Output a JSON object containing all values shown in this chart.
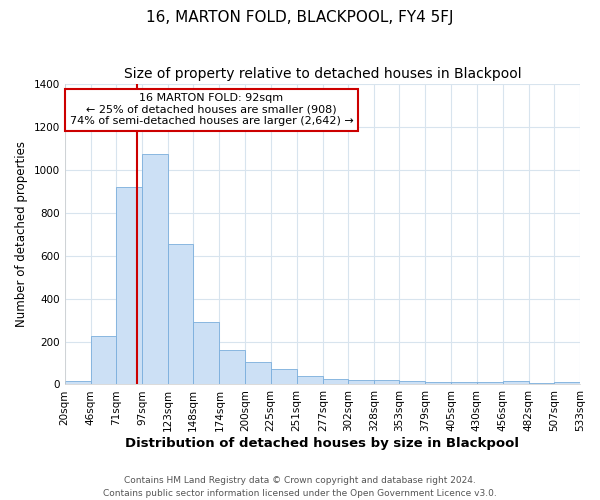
{
  "title": "16, MARTON FOLD, BLACKPOOL, FY4 5FJ",
  "subtitle": "Size of property relative to detached houses in Blackpool",
  "xlabel": "Distribution of detached houses by size in Blackpool",
  "ylabel": "Number of detached properties",
  "bin_edges": [
    20,
    46,
    71,
    97,
    123,
    148,
    174,
    200,
    225,
    251,
    277,
    302,
    328,
    353,
    379,
    405,
    430,
    456,
    482,
    507,
    533
  ],
  "bar_heights": [
    15,
    225,
    920,
    1075,
    655,
    290,
    160,
    105,
    70,
    40,
    25,
    20,
    20,
    15,
    10,
    10,
    10,
    15,
    5,
    10
  ],
  "bar_color": "#cce0f5",
  "bar_edgecolor": "#7aaedc",
  "vline_x": 92,
  "vline_color": "#cc0000",
  "annotation_text": "16 MARTON FOLD: 92sqm\n← 25% of detached houses are smaller (908)\n74% of semi-detached houses are larger (2,642) →",
  "annotation_box_color": "#ffffff",
  "annotation_box_edgecolor": "#cc0000",
  "ylim": [
    0,
    1400
  ],
  "yticks": [
    0,
    200,
    400,
    600,
    800,
    1000,
    1200,
    1400
  ],
  "xtick_labels": [
    "20sqm",
    "46sqm",
    "71sqm",
    "97sqm",
    "123sqm",
    "148sqm",
    "174sqm",
    "200sqm",
    "225sqm",
    "251sqm",
    "277sqm",
    "302sqm",
    "328sqm",
    "353sqm",
    "379sqm",
    "405sqm",
    "430sqm",
    "456sqm",
    "482sqm",
    "507sqm",
    "533sqm"
  ],
  "footer_text": "Contains HM Land Registry data © Crown copyright and database right 2024.\nContains public sector information licensed under the Open Government Licence v3.0.",
  "title_fontsize": 11,
  "subtitle_fontsize": 10,
  "xlabel_fontsize": 9.5,
  "ylabel_fontsize": 8.5,
  "tick_fontsize": 7.5,
  "footer_fontsize": 6.5,
  "grid_color": "#d8e4ee",
  "background_color": "#ffffff"
}
